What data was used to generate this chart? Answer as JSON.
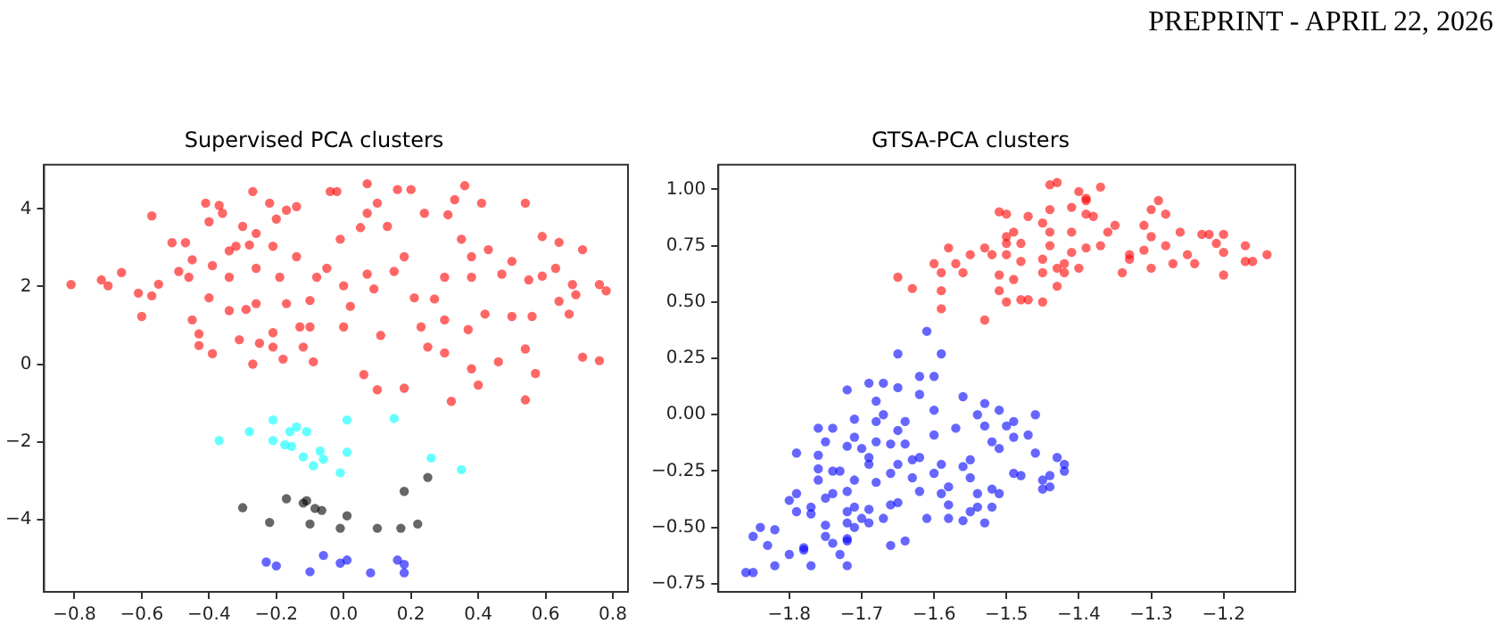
{
  "chart_data": [
    {
      "type": "scatter",
      "title": "Supervised PCA clusters",
      "annotations": [
        "PREPRINT - APRIL 22, 2026"
      ],
      "marker": "circle",
      "grid": false,
      "legend": false,
      "xlim": [
        -0.89,
        0.845
      ],
      "ylim": [
        -5.87,
        5.14
      ],
      "xticks": [
        {
          "value": -0.8,
          "label": "−0.8"
        },
        {
          "value": -0.6,
          "label": "−0.6"
        },
        {
          "value": -0.4,
          "label": "−0.4"
        },
        {
          "value": -0.2,
          "label": "−0.2"
        },
        {
          "value": 0,
          "label": "0.0"
        },
        {
          "value": 0.2,
          "label": "0.2"
        },
        {
          "value": 0.4,
          "label": "0.4"
        },
        {
          "value": 0.6,
          "label": "0.6"
        },
        {
          "value": 0.8,
          "label": "0.8"
        }
      ],
      "yticks": [
        {
          "value": -4,
          "label": "−4"
        },
        {
          "value": -2,
          "label": "−2"
        },
        0,
        2,
        4
      ],
      "series": [
        {
          "color": "#ff0000",
          "x": [
            -0.81,
            -0.72,
            -0.7,
            -0.66,
            -0.61,
            -0.6,
            -0.57,
            -0.57,
            -0.55,
            -0.51,
            -0.49,
            -0.47,
            -0.46,
            -0.45,
            -0.45,
            -0.43,
            -0.43,
            -0.41,
            -0.4,
            -0.4,
            -0.39,
            -0.39,
            -0.37,
            -0.36,
            -0.34,
            -0.34,
            -0.34,
            -0.32,
            -0.31,
            -0.3,
            -0.29,
            -0.28,
            -0.27,
            -0.27,
            -0.26,
            -0.26,
            -0.26,
            -0.25,
            -0.22,
            -0.21,
            -0.21,
            -0.21,
            -0.2,
            -0.19,
            -0.18,
            -0.17,
            -0.17,
            -0.14,
            -0.14,
            -0.13,
            -0.12,
            -0.1,
            -0.1,
            -0.09,
            -0.08,
            -0.05,
            -0.04,
            -0.02,
            -0.01,
            0.0,
            0.0,
            0.02,
            0.05,
            0.07,
            0.07,
            0.06,
            0.07,
            0.09,
            0.1,
            0.1,
            0.11,
            0.13,
            0.15,
            0.16,
            0.18,
            0.18,
            0.2,
            0.21,
            0.23,
            0.24,
            0.25,
            0.27,
            0.3,
            0.3,
            0.3,
            0.31,
            0.32,
            0.33,
            0.35,
            0.36,
            0.37,
            0.38,
            0.38,
            0.38,
            0.4,
            0.41,
            0.42,
            0.43,
            0.46,
            0.47,
            0.5,
            0.5,
            0.54,
            0.54,
            0.54,
            0.55,
            0.56,
            0.57,
            0.59,
            0.59,
            0.63,
            0.64,
            0.64,
            0.67,
            0.68,
            0.69,
            0.71,
            0.71,
            0.76,
            0.76,
            0.78
          ],
          "values": [
            2.05,
            2.17,
            2.02,
            2.36,
            1.83,
            1.23,
            1.76,
            3.82,
            2.06,
            3.13,
            2.39,
            3.13,
            2.24,
            2.69,
            1.14,
            0.78,
            0.48,
            4.15,
            3.67,
            1.71,
            0.27,
            2.54,
            4.09,
            3.89,
            2.92,
            2.24,
            1.38,
            3.04,
            0.63,
            3.55,
            1.41,
            3.07,
            0.0,
            4.45,
            3.37,
            2.47,
            1.56,
            0.54,
            4.15,
            3.04,
            0.81,
            0.44,
            3.74,
            2.24,
            0.13,
            3.97,
            1.56,
            4.06,
            2.77,
            0.96,
            0.44,
            1.64,
            0.96,
            0.06,
            2.24,
            2.47,
            4.45,
            4.45,
            3.22,
            0.96,
            2.02,
            1.49,
            3.52,
            4.65,
            3.89,
            -0.27,
            2.32,
            1.94,
            -0.66,
            4.15,
            0.74,
            3.55,
            2.39,
            4.5,
            -0.62,
            2.77,
            4.5,
            1.71,
            0.96,
            3.89,
            0.44,
            1.68,
            2.24,
            0.29,
            1.14,
            3.85,
            -0.96,
            4.24,
            3.22,
            4.6,
            0.89,
            -0.12,
            2.77,
            2.24,
            -0.54,
            4.15,
            1.29,
            2.95,
            0.06,
            2.32,
            1.23,
            2.65,
            0.39,
            4.15,
            -0.92,
            2.17,
            1.23,
            -0.24,
            3.29,
            2.27,
            2.47,
            3.14,
            1.62,
            1.29,
            2.05,
            1.79,
            2.95,
            0.18,
            0.09,
            2.05,
            1.89
          ]
        },
        {
          "color": "#00ffff",
          "x": [
            -0.37,
            -0.28,
            -0.21,
            -0.21,
            -0.16,
            -0.155,
            -0.14,
            -0.11,
            -0.12,
            -0.09,
            -0.07,
            -0.06,
            -0.01,
            0.01,
            0.01,
            0.15,
            0.26,
            0.35,
            -0.175
          ],
          "values": [
            -1.97,
            -1.74,
            -1.44,
            -1.97,
            -1.74,
            -2.12,
            -1.62,
            -1.74,
            -2.39,
            -2.62,
            -2.24,
            -2.45,
            -2.8,
            -1.44,
            -2.27,
            -1.4,
            -2.42,
            -2.72,
            -2.08
          ]
        },
        {
          "color": "#000000",
          "x": [
            -0.3,
            -0.22,
            -0.17,
            -0.12,
            -0.11,
            -0.1,
            -0.085,
            -0.065,
            -0.01,
            0.01,
            0.1,
            0.17,
            0.18,
            0.22,
            0.25
          ],
          "values": [
            -3.7,
            -4.08,
            -3.47,
            -3.58,
            -3.52,
            -4.12,
            -3.72,
            -3.77,
            -4.23,
            -3.91,
            -4.23,
            -4.23,
            -3.28,
            -4.12,
            -2.92
          ]
        },
        {
          "color": "#0000ff",
          "x": [
            -0.23,
            -0.2,
            -0.1,
            -0.06,
            -0.01,
            0.01,
            0.08,
            0.16,
            0.18,
            0.18
          ],
          "values": [
            -5.1,
            -5.2,
            -5.35,
            -4.93,
            -5.13,
            -5.05,
            -5.38,
            -5.05,
            -5.16,
            -5.38
          ]
        }
      ]
    },
    {
      "type": "scatter",
      "title": "GTSA-PCA clusters",
      "marker": "circle",
      "grid": false,
      "legend": false,
      "xlim": [
        -1.898,
        -1.101
      ],
      "ylim": [
        -0.786,
        1.109
      ],
      "xticks": [
        {
          "value": -1.8,
          "label": "−1.8"
        },
        {
          "value": -1.7,
          "label": "−1.7"
        },
        {
          "value": -1.6,
          "label": "−1.6"
        },
        {
          "value": -1.5,
          "label": "−1.5"
        },
        {
          "value": -1.4,
          "label": "−1.4"
        },
        {
          "value": -1.3,
          "label": "−1.3"
        },
        {
          "value": -1.2,
          "label": "−1.2"
        }
      ],
      "yticks": [
        {
          "value": -0.75,
          "label": "−0.75"
        },
        {
          "value": -0.5,
          "label": "−0.50"
        },
        {
          "value": -0.25,
          "label": "−0.25"
        },
        {
          "value": 0,
          "label": "0.00"
        },
        {
          "value": 0.25,
          "label": "0.25"
        },
        {
          "value": 0.5,
          "label": "0.50"
        },
        {
          "value": 0.75,
          "label": "0.75"
        },
        {
          "value": 1,
          "label": "1.00"
        }
      ],
      "series": [
        {
          "color": "#ff0000",
          "x": [
            -1.65,
            -1.63,
            -1.6,
            -1.59,
            -1.59,
            -1.59,
            -1.58,
            -1.57,
            -1.56,
            -1.55,
            -1.53,
            -1.53,
            -1.52,
            -1.51,
            -1.51,
            -1.51,
            -1.5,
            -1.5,
            -1.5,
            -1.5,
            -1.5,
            -1.49,
            -1.49,
            -1.48,
            -1.48,
            -1.48,
            -1.47,
            -1.47,
            -1.45,
            -1.45,
            -1.45,
            -1.45,
            -1.44,
            -1.44,
            -1.44,
            -1.44,
            -1.43,
            -1.43,
            -1.43,
            -1.42,
            -1.42,
            -1.41,
            -1.41,
            -1.41,
            -1.4,
            -1.4,
            -1.39,
            -1.39,
            -1.39,
            -1.39,
            -1.38,
            -1.37,
            -1.37,
            -1.36,
            -1.35,
            -1.34,
            -1.33,
            -1.33,
            -1.31,
            -1.31,
            -1.3,
            -1.3,
            -1.3,
            -1.29,
            -1.28,
            -1.28,
            -1.27,
            -1.26,
            -1.25,
            -1.24,
            -1.23,
            -1.22,
            -1.21,
            -1.2,
            -1.2,
            -1.2,
            -1.17,
            -1.17,
            -1.16,
            -1.14
          ],
          "values": [
            0.61,
            0.56,
            0.67,
            0.55,
            0.47,
            0.63,
            0.74,
            0.67,
            0.63,
            0.71,
            0.42,
            0.74,
            0.71,
            0.9,
            0.55,
            0.62,
            0.71,
            0.79,
            0.5,
            0.89,
            0.76,
            0.6,
            0.81,
            0.76,
            0.68,
            0.51,
            0.51,
            0.88,
            0.85,
            0.69,
            0.5,
            0.63,
            0.75,
            0.81,
            1.02,
            0.91,
            0.57,
            1.03,
            0.65,
            0.63,
            0.67,
            0.92,
            0.72,
            0.81,
            0.99,
            0.65,
            0.89,
            0.74,
            0.96,
            0.95,
            0.88,
            1.01,
            0.75,
            0.81,
            0.84,
            0.63,
            0.71,
            0.69,
            0.84,
            0.73,
            0.91,
            0.79,
            0.65,
            0.95,
            0.89,
            0.75,
            0.67,
            0.81,
            0.71,
            0.67,
            0.8,
            0.8,
            0.76,
            0.8,
            0.62,
            0.72,
            0.68,
            0.75,
            0.68,
            0.71
          ]
        },
        {
          "color": "#0000ff",
          "x": [
            -1.86,
            -1.85,
            -1.85,
            -1.84,
            -1.83,
            -1.82,
            -1.82,
            -1.8,
            -1.8,
            -1.79,
            -1.79,
            -1.79,
            -1.78,
            -1.78,
            -1.77,
            -1.77,
            -1.77,
            -1.76,
            -1.76,
            -1.76,
            -1.76,
            -1.75,
            -1.75,
            -1.75,
            -1.75,
            -1.74,
            -1.74,
            -1.74,
            -1.74,
            -1.73,
            -1.73,
            -1.72,
            -1.72,
            -1.72,
            -1.72,
            -1.72,
            -1.72,
            -1.72,
            -1.72,
            -1.71,
            -1.71,
            -1.71,
            -1.71,
            -1.71,
            -1.7,
            -1.7,
            -1.69,
            -1.69,
            -1.69,
            -1.69,
            -1.69,
            -1.68,
            -1.68,
            -1.68,
            -1.68,
            -1.67,
            -1.67,
            -1.67,
            -1.66,
            -1.66,
            -1.66,
            -1.66,
            -1.65,
            -1.65,
            -1.65,
            -1.65,
            -1.65,
            -1.64,
            -1.64,
            -1.64,
            -1.63,
            -1.63,
            -1.62,
            -1.62,
            -1.62,
            -1.62,
            -1.61,
            -1.61,
            -1.6,
            -1.6,
            -1.6,
            -1.6,
            -1.59,
            -1.59,
            -1.59,
            -1.58,
            -1.58,
            -1.58,
            -1.57,
            -1.56,
            -1.56,
            -1.56,
            -1.55,
            -1.55,
            -1.55,
            -1.54,
            -1.54,
            -1.54,
            -1.53,
            -1.53,
            -1.53,
            -1.52,
            -1.52,
            -1.52,
            -1.51,
            -1.51,
            -1.51,
            -1.5,
            -1.49,
            -1.49,
            -1.49,
            -1.48,
            -1.47,
            -1.46,
            -1.46,
            -1.45,
            -1.45,
            -1.44,
            -1.44,
            -1.43,
            -1.42,
            -1.42
          ],
          "values": [
            -0.7,
            -0.7,
            -0.54,
            -0.5,
            -0.58,
            -0.67,
            -0.51,
            -0.38,
            -0.62,
            -0.43,
            -0.17,
            -0.35,
            -0.59,
            -0.6,
            -0.67,
            -0.44,
            -0.41,
            -0.18,
            -0.24,
            -0.06,
            -0.29,
            -0.54,
            -0.37,
            -0.12,
            -0.49,
            -0.25,
            -0.35,
            -0.06,
            -0.57,
            -0.62,
            -0.25,
            -0.67,
            -0.48,
            -0.43,
            -0.56,
            -0.14,
            -0.34,
            0.11,
            -0.55,
            -0.1,
            -0.41,
            -0.5,
            -0.29,
            -0.02,
            -0.15,
            -0.46,
            0.14,
            -0.19,
            -0.42,
            -0.48,
            -0.22,
            -0.03,
            -0.12,
            -0.3,
            0.06,
            -0.46,
            0.14,
            0.0,
            -0.13,
            -0.26,
            -0.4,
            -0.58,
            -0.07,
            0.12,
            0.27,
            -0.39,
            -0.22,
            -0.56,
            -0.13,
            -0.03,
            -0.2,
            -0.28,
            0.17,
            -0.34,
            -0.19,
            0.09,
            -0.46,
            0.37,
            0.17,
            -0.09,
            -0.26,
            0.02,
            -0.35,
            0.27,
            -0.22,
            -0.46,
            -0.32,
            -0.4,
            -0.06,
            -0.47,
            0.08,
            -0.23,
            -0.28,
            -0.43,
            -0.2,
            0.0,
            -0.41,
            -0.35,
            -0.48,
            -0.05,
            0.05,
            -0.12,
            -0.33,
            -0.41,
            0.02,
            -0.15,
            -0.35,
            -0.05,
            -0.03,
            -0.1,
            -0.26,
            -0.27,
            -0.09,
            -0.17,
            0.0,
            -0.29,
            -0.33,
            -0.27,
            -0.32,
            -0.19,
            -0.22,
            -0.25
          ]
        }
      ]
    }
  ]
}
